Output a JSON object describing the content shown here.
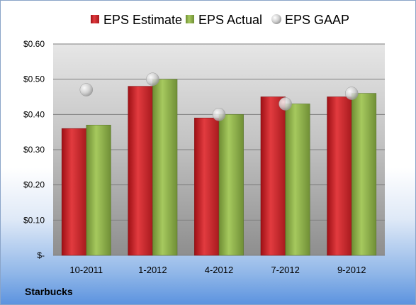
{
  "company": "Starbucks",
  "chart_data": {
    "type": "bar",
    "categories": [
      "10-2011",
      "1-2012",
      "4-2012",
      "7-2012",
      "9-2012"
    ],
    "series": [
      {
        "name": "EPS Estimate",
        "type": "bar",
        "color": "#c0262b",
        "values": [
          0.36,
          0.48,
          0.39,
          0.45,
          0.45
        ]
      },
      {
        "name": "EPS Actual",
        "type": "bar",
        "color": "#8db04a",
        "values": [
          0.37,
          0.5,
          0.4,
          0.43,
          0.46
        ]
      },
      {
        "name": "EPS GAAP",
        "type": "scatter",
        "color": "#c8c8c8",
        "values": [
          0.47,
          0.5,
          0.4,
          0.43,
          0.46
        ]
      }
    ],
    "ylim": [
      0,
      0.6
    ],
    "yticks": [
      0,
      0.1,
      0.2,
      0.3,
      0.4,
      0.5,
      0.6
    ],
    "ytick_labels": [
      "$-",
      "$0.10",
      "$0.20",
      "$0.30",
      "$0.40",
      "$0.50",
      "$0.60"
    ],
    "grid": true,
    "legend_position": "top"
  }
}
